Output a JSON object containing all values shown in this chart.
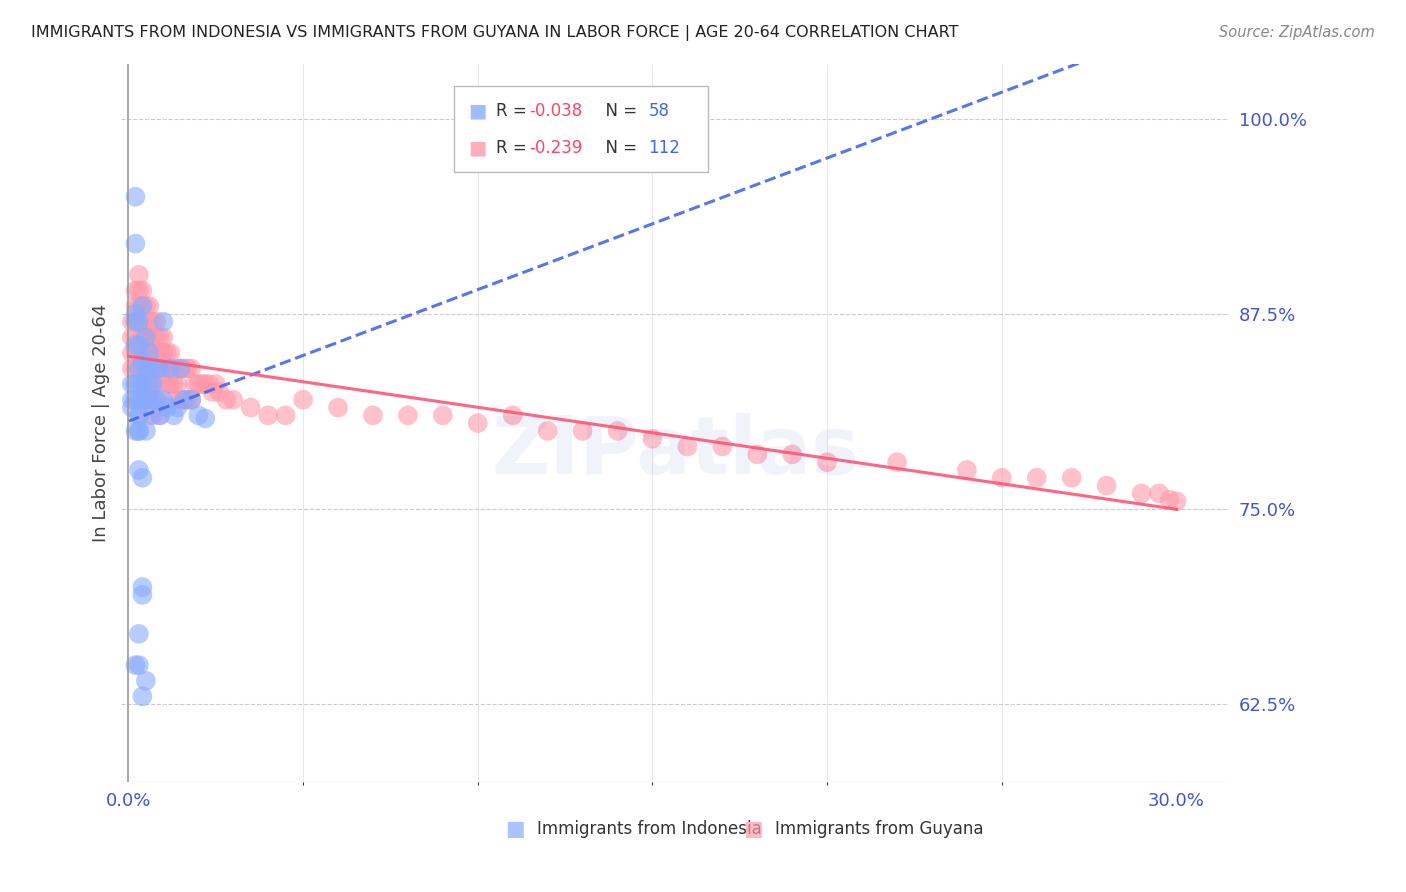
{
  "title": "IMMIGRANTS FROM INDONESIA VS IMMIGRANTS FROM GUYANA IN LABOR FORCE | AGE 20-64 CORRELATION CHART",
  "source": "Source: ZipAtlas.com",
  "ylabel": "In Labor Force | Age 20-64",
  "ytick_labels": [
    "62.5%",
    "75.0%",
    "87.5%",
    "100.0%"
  ],
  "ytick_values": [
    0.625,
    0.75,
    0.875,
    1.0
  ],
  "xtick_labels": [
    "0.0%",
    "30.0%"
  ],
  "xtick_values": [
    0.0,
    0.3
  ],
  "xlim": [
    -0.002,
    0.315
  ],
  "ylim": [
    0.575,
    1.035
  ],
  "watermark": "ZIPatlas",
  "legend_r1": "R = -0.038",
  "legend_n1": "N = 58",
  "legend_r2": "R = -0.239",
  "legend_n2": "N = 112",
  "color_indonesia": "#88aaff",
  "color_guyana": "#ff99aa",
  "color_axis_labels": "#4455cc",
  "color_grid": "#cccccc",
  "color_title": "#222222",
  "color_source": "#888888",
  "color_watermark": "#5566cc",
  "indo_x": [
    0.001,
    0.001,
    0.001,
    0.002,
    0.002,
    0.002,
    0.002,
    0.002,
    0.003,
    0.003,
    0.003,
    0.003,
    0.003,
    0.003,
    0.003,
    0.004,
    0.004,
    0.004,
    0.004,
    0.005,
    0.005,
    0.005,
    0.005,
    0.006,
    0.006,
    0.006,
    0.006,
    0.007,
    0.007,
    0.008,
    0.008,
    0.009,
    0.009,
    0.01,
    0.01,
    0.011,
    0.012,
    0.013,
    0.014,
    0.015,
    0.016,
    0.018,
    0.02,
    0.022,
    0.002,
    0.003,
    0.004,
    0.005,
    0.003,
    0.004,
    0.002,
    0.003,
    0.002,
    0.004,
    0.003,
    0.003,
    0.004,
    0.002
  ],
  "indo_y": [
    0.82,
    0.83,
    0.815,
    0.87,
    0.855,
    0.875,
    0.83,
    0.82,
    0.87,
    0.855,
    0.84,
    0.83,
    0.82,
    0.81,
    0.8,
    0.88,
    0.845,
    0.83,
    0.82,
    0.86,
    0.84,
    0.82,
    0.8,
    0.85,
    0.84,
    0.83,
    0.82,
    0.83,
    0.81,
    0.84,
    0.82,
    0.84,
    0.81,
    0.87,
    0.82,
    0.815,
    0.84,
    0.81,
    0.815,
    0.84,
    0.82,
    0.82,
    0.81,
    0.808,
    0.95,
    0.81,
    0.7,
    0.64,
    0.775,
    0.695,
    0.8,
    0.8,
    0.65,
    0.77,
    0.65,
    0.67,
    0.63,
    0.92
  ],
  "guyana_x": [
    0.001,
    0.001,
    0.001,
    0.001,
    0.002,
    0.002,
    0.002,
    0.002,
    0.002,
    0.003,
    0.003,
    0.003,
    0.003,
    0.003,
    0.003,
    0.004,
    0.004,
    0.004,
    0.004,
    0.004,
    0.005,
    0.005,
    0.005,
    0.005,
    0.005,
    0.006,
    0.006,
    0.006,
    0.006,
    0.007,
    0.007,
    0.007,
    0.007,
    0.008,
    0.008,
    0.008,
    0.008,
    0.009,
    0.009,
    0.009,
    0.01,
    0.01,
    0.01,
    0.011,
    0.011,
    0.011,
    0.012,
    0.012,
    0.012,
    0.013,
    0.013,
    0.014,
    0.014,
    0.015,
    0.015,
    0.016,
    0.016,
    0.017,
    0.017,
    0.018,
    0.018,
    0.019,
    0.02,
    0.021,
    0.022,
    0.023,
    0.024,
    0.025,
    0.026,
    0.028,
    0.03,
    0.035,
    0.04,
    0.045,
    0.05,
    0.06,
    0.07,
    0.08,
    0.09,
    0.1,
    0.11,
    0.12,
    0.13,
    0.14,
    0.15,
    0.16,
    0.17,
    0.18,
    0.19,
    0.2,
    0.22,
    0.24,
    0.25,
    0.26,
    0.27,
    0.28,
    0.29,
    0.295,
    0.298,
    0.3,
    0.002,
    0.003,
    0.004,
    0.005,
    0.006,
    0.007,
    0.008,
    0.009,
    0.01,
    0.011,
    0.012,
    0.013
  ],
  "guyana_y": [
    0.87,
    0.86,
    0.85,
    0.84,
    0.89,
    0.88,
    0.87,
    0.86,
    0.84,
    0.9,
    0.89,
    0.88,
    0.87,
    0.85,
    0.84,
    0.89,
    0.88,
    0.87,
    0.86,
    0.84,
    0.88,
    0.87,
    0.86,
    0.85,
    0.83,
    0.88,
    0.87,
    0.86,
    0.84,
    0.87,
    0.86,
    0.85,
    0.83,
    0.87,
    0.86,
    0.85,
    0.83,
    0.86,
    0.85,
    0.84,
    0.86,
    0.85,
    0.84,
    0.85,
    0.84,
    0.83,
    0.85,
    0.84,
    0.83,
    0.84,
    0.83,
    0.84,
    0.83,
    0.84,
    0.82,
    0.84,
    0.82,
    0.84,
    0.82,
    0.84,
    0.82,
    0.83,
    0.83,
    0.83,
    0.83,
    0.83,
    0.825,
    0.83,
    0.825,
    0.82,
    0.82,
    0.815,
    0.81,
    0.81,
    0.82,
    0.815,
    0.81,
    0.81,
    0.81,
    0.805,
    0.81,
    0.8,
    0.8,
    0.8,
    0.795,
    0.79,
    0.79,
    0.785,
    0.785,
    0.78,
    0.78,
    0.775,
    0.77,
    0.77,
    0.77,
    0.765,
    0.76,
    0.76,
    0.756,
    0.755,
    0.85,
    0.84,
    0.83,
    0.82,
    0.81,
    0.82,
    0.82,
    0.81,
    0.85,
    0.84,
    0.83,
    0.82
  ]
}
